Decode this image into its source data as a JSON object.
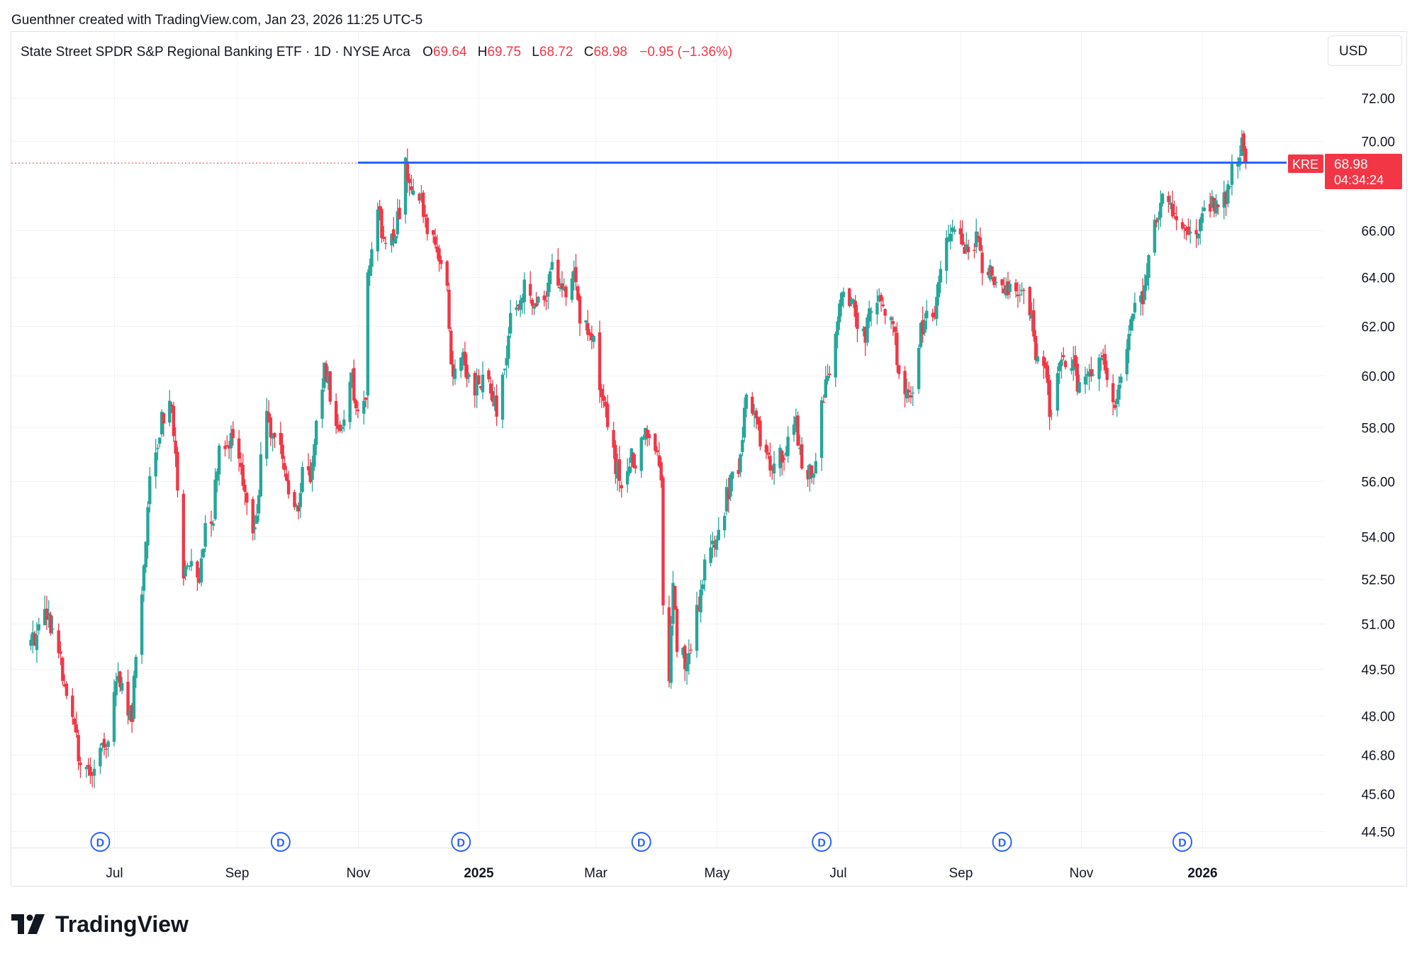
{
  "header": {
    "created_by": "Guenthner created with TradingView.com, Jan 23, 2026 11:25 UTC-5"
  },
  "legend": {
    "symbol_description": "State Street SPDR S&P Regional Banking ETF · 1D · NYSE Arca",
    "open_label": "O",
    "open_value": "69.64",
    "high_label": "H",
    "high_value": "69.75",
    "low_label": "L",
    "low_value": "68.72",
    "close_label": "C",
    "close_value": "68.98",
    "change": "−0.95 (−1.36%)"
  },
  "currency_button": "USD",
  "price_tag": {
    "symbol": "KRE",
    "price": "68.98",
    "countdown": "04:34:24"
  },
  "dividend_marker_label": "D",
  "footer": {
    "logo_text": "TradingView"
  },
  "colors": {
    "up": "#26a69a",
    "down": "#f23645",
    "level_line": "#2962ff",
    "grid": "#f0f3fa",
    "text": "#131722",
    "border": "#e0e3eb",
    "price_tag": "#f23645",
    "dividend": "#2962ff"
  },
  "chart_data": {
    "type": "candlestick",
    "symbol": "KRE",
    "interval": "1D",
    "exchange": "NYSE Arca",
    "y_scale": "log",
    "ylim": [
      44.0,
      73.0
    ],
    "grid": true,
    "y_ticks": [
      "72.00",
      "70.00",
      "66.00",
      "64.00",
      "62.00",
      "60.00",
      "58.00",
      "56.00",
      "54.00",
      "52.50",
      "51.00",
      "49.50",
      "48.00",
      "46.80",
      "45.60",
      "44.50"
    ],
    "x_ticks": [
      {
        "date": "2024-07-01",
        "label": "Jul",
        "bold": false
      },
      {
        "date": "2024-09-01",
        "label": "Sep",
        "bold": false
      },
      {
        "date": "2024-11-01",
        "label": "Nov",
        "bold": false
      },
      {
        "date": "2025-01-01",
        "label": "2025",
        "bold": true
      },
      {
        "date": "2025-03-01",
        "label": "Mar",
        "bold": false
      },
      {
        "date": "2025-05-01",
        "label": "May",
        "bold": false
      },
      {
        "date": "2025-07-01",
        "label": "Jul",
        "bold": false
      },
      {
        "date": "2025-09-01",
        "label": "Sep",
        "bold": false
      },
      {
        "date": "2025-11-01",
        "label": "Nov",
        "bold": false
      },
      {
        "date": "2026-01-01",
        "label": "2026",
        "bold": true
      }
    ],
    "horizontal_level": {
      "price": 69.0,
      "from_date": "2024-11-01",
      "to_date": "2026-01-23"
    },
    "last_price": 68.98,
    "dividends": [
      "2024-06-24",
      "2024-09-23",
      "2024-12-23",
      "2025-03-24",
      "2025-06-23",
      "2025-09-22",
      "2025-12-22"
    ],
    "anchors": [
      [
        "2024-05-20",
        50.3
      ],
      [
        "2024-05-28",
        51.4
      ],
      [
        "2024-06-03",
        50.1
      ],
      [
        "2024-06-06",
        48.8
      ],
      [
        "2024-06-11",
        47.5
      ],
      [
        "2024-06-14",
        46.6
      ],
      [
        "2024-06-20",
        46.3
      ],
      [
        "2024-06-24",
        47.0
      ],
      [
        "2024-06-28",
        47.1
      ],
      [
        "2024-07-02",
        49.3
      ],
      [
        "2024-07-05",
        49.1
      ],
      [
        "2024-07-10",
        47.7
      ],
      [
        "2024-07-12",
        50.2
      ],
      [
        "2024-07-16",
        52.8
      ],
      [
        "2024-07-17",
        54.1
      ],
      [
        "2024-07-19",
        56.2
      ],
      [
        "2024-07-23",
        57.4
      ],
      [
        "2024-07-25",
        58.4
      ],
      [
        "2024-07-30",
        59.1
      ],
      [
        "2024-08-02",
        55.6
      ],
      [
        "2024-08-05",
        52.6
      ],
      [
        "2024-08-08",
        52.9
      ],
      [
        "2024-08-13",
        52.3
      ],
      [
        "2024-08-16",
        54.4
      ],
      [
        "2024-08-20",
        54.7
      ],
      [
        "2024-08-23",
        57.6
      ],
      [
        "2024-08-27",
        57.1
      ],
      [
        "2024-08-30",
        57.8
      ],
      [
        "2024-09-04",
        56.2
      ],
      [
        "2024-09-06",
        55.2
      ],
      [
        "2024-09-10",
        54.2
      ],
      [
        "2024-09-13",
        56.6
      ],
      [
        "2024-09-16",
        58.3
      ],
      [
        "2024-09-19",
        57.8
      ],
      [
        "2024-09-24",
        56.9
      ],
      [
        "2024-09-27",
        55.6
      ],
      [
        "2024-10-02",
        54.9
      ],
      [
        "2024-10-04",
        56.5
      ],
      [
        "2024-10-08",
        56.1
      ],
      [
        "2024-10-11",
        58.6
      ],
      [
        "2024-10-15",
        60.1
      ],
      [
        "2024-10-18",
        59.4
      ],
      [
        "2024-10-22",
        57.9
      ],
      [
        "2024-10-25",
        58.6
      ],
      [
        "2024-10-29",
        59.8
      ],
      [
        "2024-11-01",
        58.3
      ],
      [
        "2024-11-05",
        58.9
      ],
      [
        "2024-11-06",
        64.6
      ],
      [
        "2024-11-08",
        65.3
      ],
      [
        "2024-11-11",
        67.1
      ],
      [
        "2024-11-13",
        65.9
      ],
      [
        "2024-11-15",
        65.1
      ],
      [
        "2024-11-19",
        65.6
      ],
      [
        "2024-11-22",
        66.9
      ],
      [
        "2024-11-25",
        68.9
      ],
      [
        "2024-11-27",
        68.4
      ],
      [
        "2024-12-03",
        67.2
      ],
      [
        "2024-12-06",
        66.1
      ],
      [
        "2024-12-11",
        65.3
      ],
      [
        "2024-12-16",
        63.6
      ],
      [
        "2024-12-18",
        60.1
      ],
      [
        "2024-12-20",
        60.4
      ],
      [
        "2024-12-24",
        60.6
      ],
      [
        "2024-12-30",
        59.4
      ],
      [
        "2025-01-03",
        59.9
      ],
      [
        "2025-01-08",
        59.3
      ],
      [
        "2025-01-10",
        58.3
      ],
      [
        "2025-01-15",
        61.1
      ],
      [
        "2025-01-17",
        62.4
      ],
      [
        "2025-01-22",
        63.1
      ],
      [
        "2025-01-24",
        63.6
      ],
      [
        "2025-01-29",
        63.1
      ],
      [
        "2025-02-03",
        62.9
      ],
      [
        "2025-02-06",
        64.6
      ],
      [
        "2025-02-10",
        64.1
      ],
      [
        "2025-02-13",
        63.4
      ],
      [
        "2025-02-18",
        63.9
      ],
      [
        "2025-02-21",
        62.4
      ],
      [
        "2025-02-25",
        61.6
      ],
      [
        "2025-02-28",
        61.9
      ],
      [
        "2025-03-04",
        58.9
      ],
      [
        "2025-03-07",
        58.2
      ],
      [
        "2025-03-11",
        56.6
      ],
      [
        "2025-03-14",
        56.0
      ],
      [
        "2025-03-18",
        56.9
      ],
      [
        "2025-03-21",
        56.7
      ],
      [
        "2025-03-25",
        57.8
      ],
      [
        "2025-03-28",
        57.6
      ],
      [
        "2025-04-01",
        57.1
      ],
      [
        "2025-04-03",
        55.9
      ],
      [
        "2025-04-04",
        51.4
      ],
      [
        "2025-04-07",
        49.1
      ],
      [
        "2025-04-09",
        52.3
      ],
      [
        "2025-04-11",
        50.3
      ],
      [
        "2025-04-16",
        49.6
      ],
      [
        "2025-04-21",
        51.3
      ],
      [
        "2025-04-24",
        52.6
      ],
      [
        "2025-04-28",
        53.6
      ],
      [
        "2025-05-02",
        54.2
      ],
      [
        "2025-05-06",
        55.4
      ],
      [
        "2025-05-09",
        56.1
      ],
      [
        "2025-05-13",
        56.6
      ],
      [
        "2025-05-16",
        59.4
      ],
      [
        "2025-05-21",
        58.4
      ],
      [
        "2025-05-23",
        57.2
      ],
      [
        "2025-05-28",
        56.6
      ],
      [
        "2025-06-02",
        56.9
      ],
      [
        "2025-06-05",
        57.3
      ],
      [
        "2025-06-10",
        58.2
      ],
      [
        "2025-06-13",
        56.6
      ],
      [
        "2025-06-18",
        56.3
      ],
      [
        "2025-06-20",
        57.0
      ],
      [
        "2025-06-24",
        59.3
      ],
      [
        "2025-06-27",
        60.3
      ],
      [
        "2025-07-01",
        62.3
      ],
      [
        "2025-07-03",
        63.2
      ],
      [
        "2025-07-08",
        63.1
      ],
      [
        "2025-07-11",
        62.2
      ],
      [
        "2025-07-15",
        61.6
      ],
      [
        "2025-07-18",
        62.8
      ],
      [
        "2025-07-22",
        63.5
      ],
      [
        "2025-07-24",
        62.9
      ],
      [
        "2025-07-29",
        62.1
      ],
      [
        "2025-08-01",
        59.9
      ],
      [
        "2025-08-05",
        59.3
      ],
      [
        "2025-08-08",
        59.6
      ],
      [
        "2025-08-12",
        61.9
      ],
      [
        "2025-08-15",
        62.3
      ],
      [
        "2025-08-19",
        61.9
      ],
      [
        "2025-08-22",
        64.6
      ],
      [
        "2025-08-27",
        65.9
      ],
      [
        "2025-09-02",
        65.3
      ],
      [
        "2025-09-05",
        64.9
      ],
      [
        "2025-09-09",
        65.6
      ],
      [
        "2025-09-12",
        64.6
      ],
      [
        "2025-09-16",
        64.1
      ],
      [
        "2025-09-19",
        63.9
      ],
      [
        "2025-09-23",
        63.2
      ],
      [
        "2025-09-26",
        63.6
      ],
      [
        "2025-09-30",
        63.4
      ],
      [
        "2025-10-03",
        63.6
      ],
      [
        "2025-10-07",
        62.1
      ],
      [
        "2025-10-10",
        60.4
      ],
      [
        "2025-10-14",
        60.6
      ],
      [
        "2025-10-16",
        58.6
      ],
      [
        "2025-10-20",
        59.9
      ],
      [
        "2025-10-23",
        60.6
      ],
      [
        "2025-10-28",
        60.3
      ],
      [
        "2025-10-31",
        59.4
      ],
      [
        "2025-11-04",
        59.9
      ],
      [
        "2025-11-07",
        60.3
      ],
      [
        "2025-11-11",
        61.1
      ],
      [
        "2025-11-14",
        59.6
      ],
      [
        "2025-11-18",
        58.6
      ],
      [
        "2025-11-20",
        59.9
      ],
      [
        "2025-11-24",
        61.4
      ],
      [
        "2025-11-28",
        62.9
      ],
      [
        "2025-12-02",
        63.3
      ],
      [
        "2025-12-05",
        64.6
      ],
      [
        "2025-12-09",
        66.6
      ],
      [
        "2025-12-12",
        67.6
      ],
      [
        "2025-12-16",
        67.1
      ],
      [
        "2025-12-19",
        66.9
      ],
      [
        "2025-12-23",
        66.4
      ],
      [
        "2025-12-26",
        65.6
      ],
      [
        "2025-12-30",
        65.9
      ],
      [
        "2026-01-02",
        66.6
      ],
      [
        "2026-01-06",
        67.3
      ],
      [
        "2026-01-09",
        66.9
      ],
      [
        "2026-01-13",
        67.6
      ],
      [
        "2026-01-15",
        68.4
      ],
      [
        "2026-01-20",
        69.6
      ],
      [
        "2026-01-21",
        69.9
      ],
      [
        "2026-01-22",
        69.4
      ],
      [
        "2026-01-23",
        68.98
      ]
    ]
  }
}
